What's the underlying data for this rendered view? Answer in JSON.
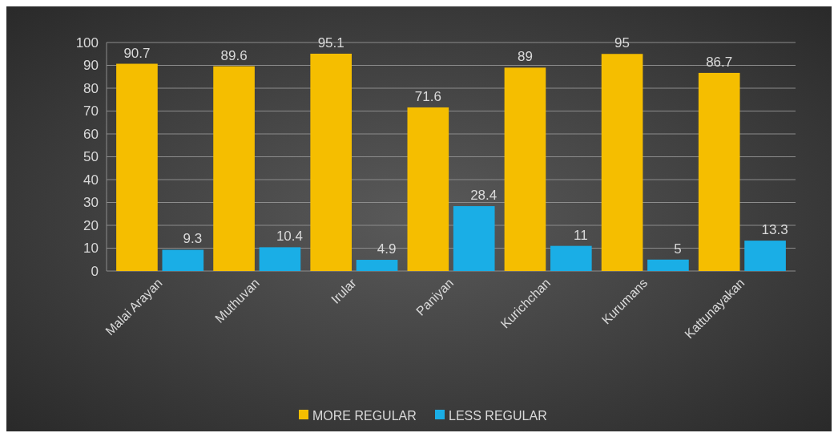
{
  "chart_data": {
    "type": "bar",
    "categories": [
      "Malai Arayan",
      "Muthuvan",
      "Irular",
      "Paniyan",
      "Kurichchan",
      "Kurumans",
      "Kattunayakan"
    ],
    "series": [
      {
        "name": "MORE REGULAR",
        "color": "#f5be00",
        "values": [
          90.7,
          89.6,
          95.1,
          71.6,
          89,
          95,
          86.7
        ]
      },
      {
        "name": "LESS REGULAR",
        "color": "#1aaee6",
        "values": [
          9.3,
          10.4,
          4.9,
          28.4,
          11,
          5,
          13.3
        ]
      }
    ],
    "ylim": [
      0,
      100
    ],
    "yticks": [
      0,
      10,
      20,
      30,
      40,
      50,
      60,
      70,
      80,
      90,
      100
    ],
    "grid": "y",
    "legend": "bottom",
    "data_labels": true
  }
}
